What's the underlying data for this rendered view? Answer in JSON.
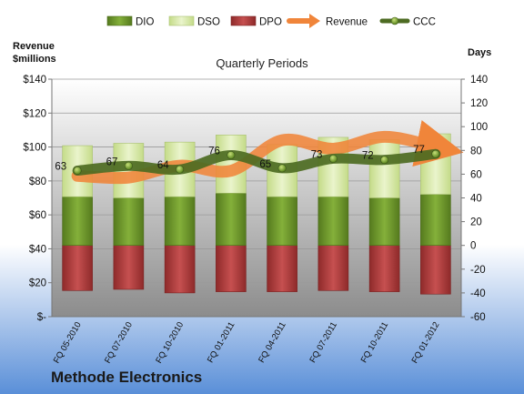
{
  "company_name": "Methode Electronics",
  "chart_data": {
    "type": "bar",
    "subtitle": "Quarterly Periods",
    "left_axis_unit": "Revenue\n$millions",
    "right_axis_unit": "Days",
    "categories": [
      "FQ 05-2010",
      "FQ 07-2010",
      "FQ 10-2010",
      "FQ 01-2011",
      "FQ 04-2011",
      "FQ 07-2011",
      "FQ 10-2011",
      "FQ 01-2012"
    ],
    "left_ticks": [
      "$-",
      "$20",
      "$40",
      "$60",
      "$80",
      "$100",
      "$120",
      "$140"
    ],
    "right_ticks": [
      "-60",
      "-40",
      "-20",
      "0",
      "20",
      "40",
      "60",
      "80",
      "100",
      "120",
      "140"
    ],
    "left_range": [
      0,
      140
    ],
    "right_range": [
      -60,
      140
    ],
    "series": [
      {
        "name": "DIO",
        "type": "stacked-bar",
        "axis": "days",
        "values": [
          41,
          40,
          41,
          44,
          41,
          41,
          40,
          43
        ]
      },
      {
        "name": "DSO",
        "type": "stacked-bar",
        "axis": "days",
        "values": [
          43,
          46,
          46,
          49,
          44,
          50,
          49,
          51
        ]
      },
      {
        "name": "DPO",
        "type": "stacked-bar-negative",
        "axis": "days",
        "values": [
          -38,
          -37,
          -40,
          -39,
          -39,
          -38,
          -39,
          -41
        ]
      },
      {
        "name": "Revenue",
        "type": "line",
        "axis": "revenue",
        "values": [
          83,
          82,
          89,
          86,
          104,
          99,
          106,
          100
        ]
      },
      {
        "name": "CCC",
        "type": "line",
        "axis": "days",
        "values": [
          63,
          67,
          64,
          76,
          65,
          73,
          72,
          77
        ]
      }
    ],
    "ccc_labels": [
      "63",
      "67",
      "64",
      "76",
      "65",
      "73",
      "72",
      "77"
    ],
    "legend_position": "top",
    "grid": true,
    "colors": {
      "dio": "#6e9a2a",
      "dso": "#d6e8a6",
      "dpo": "#b03a3a",
      "revenue": "#f0853a",
      "ccc": "#4d6b22",
      "bg_top": "#ffffff",
      "bg_bottom": "#5c8fd6"
    }
  }
}
